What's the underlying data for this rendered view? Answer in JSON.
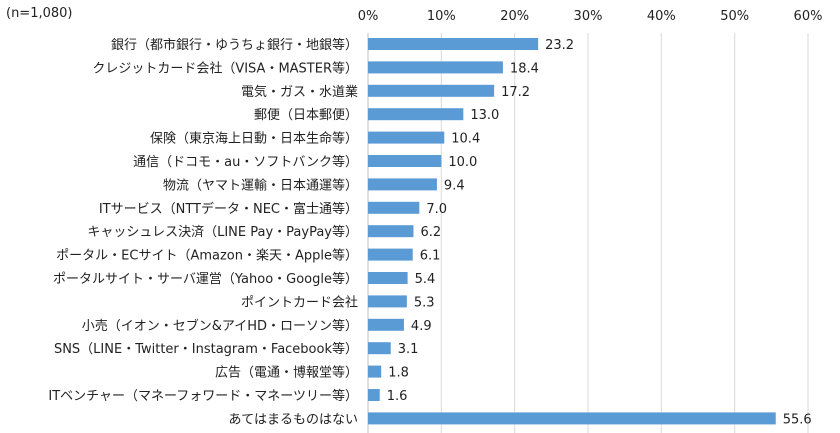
{
  "note": "(n=1,080)",
  "chart_data": {
    "type": "bar",
    "orientation": "horizontal",
    "xlim": [
      0,
      60
    ],
    "ticks": [
      "0%",
      "10%",
      "20%",
      "30%",
      "40%",
      "50%",
      "60%"
    ],
    "tick_values": [
      0,
      10,
      20,
      30,
      40,
      50,
      60
    ],
    "bar_color": "#5b9bd5",
    "grid": true,
    "categories": [
      "銀行（都市銀行・ゆうちょ銀行・地銀等）",
      "クレジットカード会社（VISA・MASTER等）",
      "電気・ガス・水道業",
      "郵便（日本郵便）",
      "保険（東京海上日動・日本生命等）",
      "通信（ドコモ・au・ソフトバンク等）",
      "物流（ヤマト運輸・日本通運等）",
      "ITサービス（NTTデータ・NEC・富士通等）",
      "キャッシュレス決済（LINE Pay・PayPay等）",
      "ポータル・ECサイト（Amazon・楽天・Apple等）",
      "ポータルサイト・サーバ運営（Yahoo・Google等）",
      "ポイントカード会社",
      "小売（イオン・セブン&アイHD・ローソン等）",
      "SNS（LINE・Twitter・Instagram・Facebook等）",
      "広告（電通・博報堂等）",
      "ITベンチャー（マネーフォワード・マネーツリー等）",
      "あてはまるものはない"
    ],
    "values": [
      23.2,
      18.4,
      17.2,
      13.0,
      10.4,
      10.0,
      9.4,
      7.0,
      6.2,
      6.1,
      5.4,
      5.3,
      4.9,
      3.1,
      1.8,
      1.6,
      55.6
    ],
    "value_labels": [
      "23.2",
      "18.4",
      "17.2",
      "13.0",
      "10.4",
      "10.0",
      "9.4",
      "7.0",
      "6.2",
      "6.1",
      "5.4",
      "5.3",
      "4.9",
      "3.1",
      "1.8",
      "1.6",
      "55.6"
    ]
  }
}
